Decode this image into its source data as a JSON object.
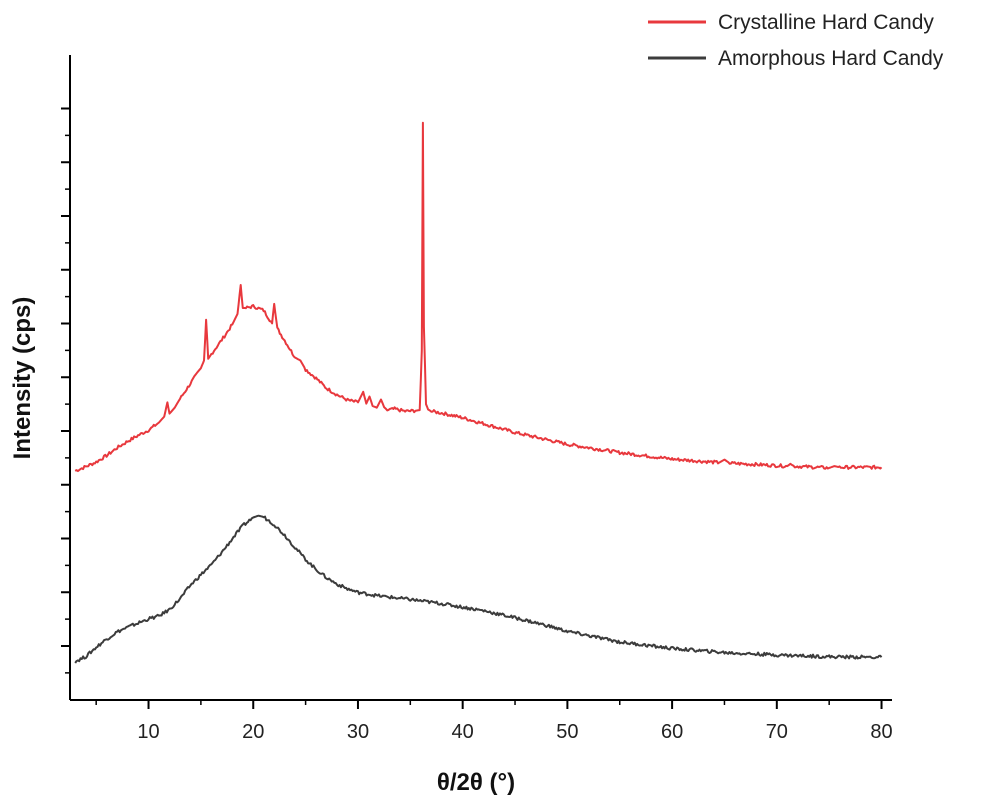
{
  "chart_data": {
    "type": "line",
    "title": "",
    "xlabel": "θ/2θ (°)",
    "ylabel": "Intensity (cps)",
    "xlim": [
      2.5,
      81
    ],
    "ylim": [
      0,
      100
    ],
    "x_ticks": [
      10,
      20,
      30,
      40,
      50,
      60,
      70,
      80
    ],
    "y_tick_labels_shown": false,
    "y_major_tick_count": 12,
    "grid": false,
    "legend_position": "top-right",
    "series": [
      {
        "name": "Crystalline Hard Candy",
        "color": "#e8383d",
        "x": [
          3,
          4,
          5,
          6,
          7,
          8,
          9,
          10,
          11,
          11.5,
          11.8,
          12,
          12.5,
          13,
          14,
          15,
          15.3,
          15.5,
          15.7,
          16,
          17,
          18,
          18.5,
          18.8,
          19,
          19.3,
          20,
          21,
          21.8,
          22,
          22.3,
          23,
          24,
          24.5,
          25,
          26,
          27,
          28,
          29,
          30,
          30.5,
          30.8,
          31.1,
          31.4,
          31.8,
          32.2,
          32.5,
          32.8,
          33.5,
          34.5,
          35.5,
          35.9,
          36.1,
          36.2,
          36.3,
          36.5,
          36.7,
          37,
          38,
          40,
          42,
          45,
          48,
          50,
          55,
          60,
          64.5,
          65,
          65.5,
          70,
          71,
          71.3,
          71.6,
          75,
          75.5,
          76,
          78,
          80
        ],
        "y": [
          34.6,
          35.3,
          36.1,
          37.2,
          38.5,
          39.6,
          40.6,
          41.5,
          42.8,
          43.8,
          46.2,
          44.3,
          45.3,
          46.8,
          49.4,
          52.0,
          53.3,
          60.2,
          53.6,
          54.4,
          56.8,
          59.4,
          61.2,
          66.1,
          62.2,
          62.2,
          62.5,
          61.8,
          59.6,
          62.9,
          58.7,
          56.7,
          53.8,
          53.3,
          51.8,
          50.3,
          48.6,
          47.5,
          46.6,
          46.2,
          48.0,
          46.0,
          47.2,
          45.6,
          45.3,
          46.7,
          45.4,
          44.9,
          45.1,
          44.7,
          44.8,
          44.9,
          55.0,
          93.6,
          59.0,
          45.9,
          45.0,
          44.7,
          44.4,
          43.6,
          42.6,
          41.1,
          39.9,
          39.1,
          37.7,
          36.6,
          36.0,
          36.5,
          35.9,
          35.5,
          35.4,
          35.8,
          35.4,
          35.1,
          35.4,
          35.2,
          35.2,
          35.2
        ]
      },
      {
        "name": "Amorphous Hard Candy",
        "color": "#3c3c3c",
        "x": [
          3,
          4,
          5,
          6,
          7,
          8,
          9,
          10,
          11,
          12,
          13,
          14,
          15,
          16,
          17,
          18,
          19,
          20,
          20.5,
          21,
          22,
          23,
          24,
          25,
          26,
          27,
          28,
          29,
          30,
          32,
          35,
          38,
          40,
          42,
          45,
          48,
          50,
          55,
          60,
          65,
          70,
          75,
          80
        ],
        "y": [
          2.3,
          3.1,
          4.7,
          6.1,
          7.3,
          8.1,
          8.8,
          9.5,
          10.0,
          11.1,
          12.9,
          15.2,
          17.0,
          18.7,
          20.8,
          23.1,
          25.3,
          26.7,
          27.0,
          26.8,
          25.5,
          23.7,
          21.6,
          19.6,
          17.9,
          16.5,
          15.4,
          14.6,
          14.0,
          13.4,
          12.8,
          12.1,
          11.5,
          10.9,
          9.7,
          8.4,
          7.4,
          5.6,
          4.5,
          3.8,
          3.4,
          3.1,
          3.0
        ]
      }
    ]
  }
}
